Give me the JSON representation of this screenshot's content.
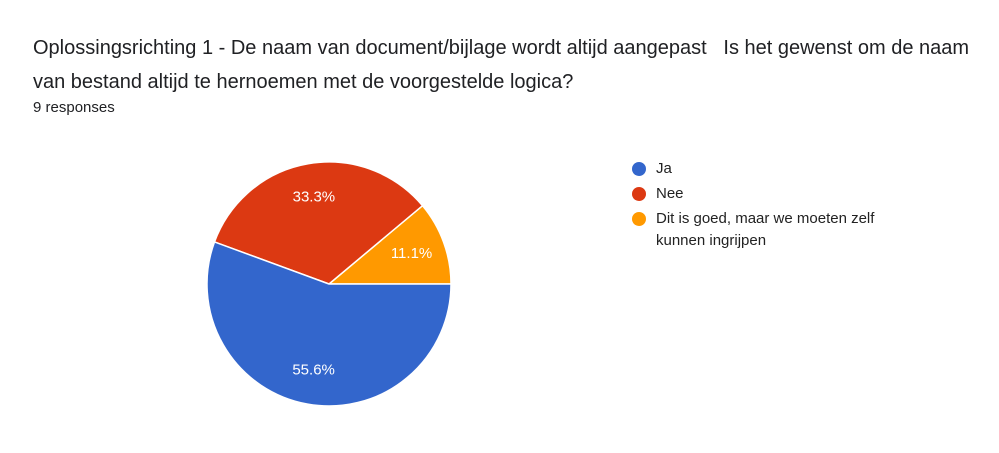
{
  "chart_data": {
    "type": "pie",
    "title": "Oplossingsrichting 1 - De naam van document/bijlage wordt altijd aangepast   Is het gewenst om de naam van bestand altijd te hernoemen met de voorgestelde logica?",
    "subtitle": "9 responses",
    "categories": [
      "Ja",
      "Nee",
      "Dit is goed, maar we moeten zelf kunnen ingrijpen"
    ],
    "values": [
      55.6,
      33.3,
      11.1
    ],
    "value_labels": [
      "55.6%",
      "33.3%",
      "11.1%"
    ],
    "colors": [
      "#3366cc",
      "#dc3912",
      "#ff9900"
    ]
  }
}
